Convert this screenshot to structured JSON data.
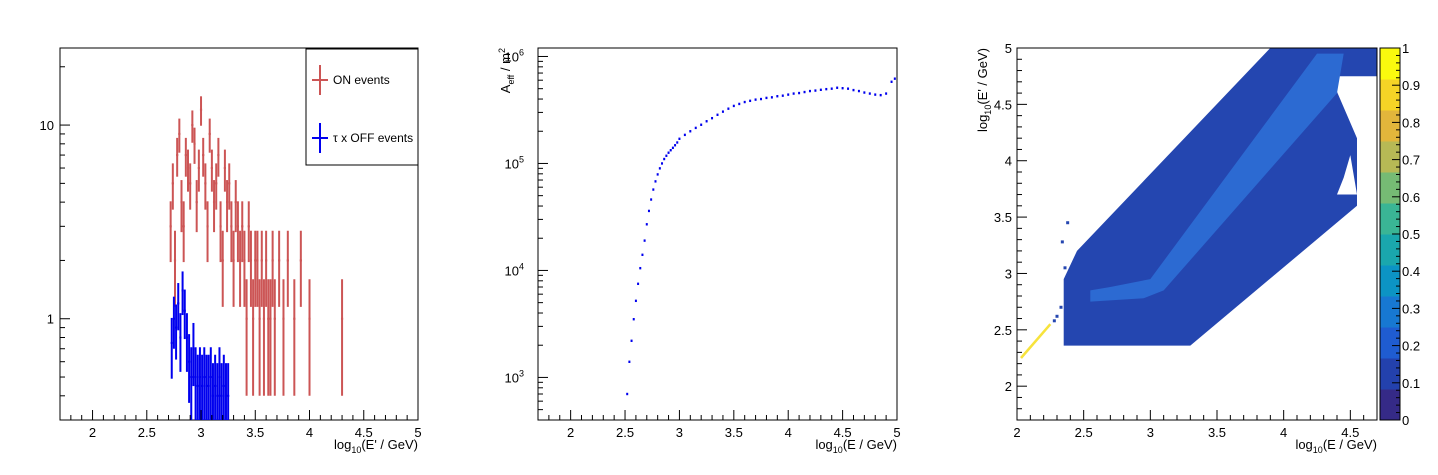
{
  "chart_data": [
    {
      "type": "step",
      "xlabel": "log10(E' / GeV)",
      "xlabel_parts": {
        "base": "log",
        "sub": "10",
        "rest": "(E' / GeV)"
      },
      "xlim": [
        1.7,
        5.0
      ],
      "ylim": [
        0.3,
        25
      ],
      "yscale": "log",
      "x_ticks": [
        2,
        2.5,
        3,
        3.5,
        4,
        4.5,
        5
      ],
      "x_tick_labels": [
        "2",
        "2.5",
        "3",
        "3.5",
        "4",
        "4.5",
        "5"
      ],
      "y_ticks": [
        1,
        10
      ],
      "y_tick_labels": [
        "1",
        "10"
      ],
      "legend": {
        "placement": "top-right"
      },
      "series": [
        {
          "name": "ON events",
          "color": "#cc5555",
          "x": [
            2.72,
            2.74,
            2.76,
            2.78,
            2.8,
            2.82,
            2.84,
            2.86,
            2.88,
            2.9,
            2.92,
            2.94,
            2.96,
            2.98,
            3.0,
            3.02,
            3.04,
            3.06,
            3.08,
            3.1,
            3.12,
            3.14,
            3.16,
            3.18,
            3.2,
            3.22,
            3.24,
            3.26,
            3.28,
            3.3,
            3.32,
            3.34,
            3.36,
            3.38,
            3.4,
            3.42,
            3.44,
            3.46,
            3.48,
            3.5,
            3.52,
            3.54,
            3.56,
            3.58,
            3.6,
            3.62,
            3.64,
            3.66,
            3.68,
            3.72,
            3.76,
            3.8,
            3.86,
            3.92,
            4.0,
            4.3
          ],
          "y": [
            3,
            5,
            2,
            7,
            9,
            4,
            3,
            7,
            6,
            5,
            10,
            8,
            4,
            6,
            12,
            7,
            5,
            3,
            9,
            6,
            4,
            5,
            7,
            3,
            2,
            6,
            4,
            5,
            3,
            2,
            4,
            3,
            2,
            3,
            2,
            1,
            3,
            2,
            1,
            2,
            2,
            1,
            2,
            1,
            2,
            1,
            1,
            2,
            1,
            2,
            1,
            2,
            1,
            2,
            1,
            1
          ]
        },
        {
          "name": "τ x OFF events",
          "color": "#0000ee",
          "x": [
            2.73,
            2.75,
            2.77,
            2.79,
            2.81,
            2.83,
            2.85,
            2.87,
            2.89,
            2.91,
            2.93,
            2.95,
            2.97,
            2.99,
            3.01,
            3.03,
            3.05,
            3.07,
            3.09,
            3.11,
            3.13,
            3.15,
            3.17,
            3.19,
            3.21,
            3.23,
            3.25
          ],
          "y": [
            0.75,
            1.0,
            0.9,
            1.2,
            0.8,
            1.4,
            1.1,
            0.8,
            0.6,
            0.5,
            0.7,
            0.5,
            0.45,
            0.5,
            0.45,
            0.5,
            0.45,
            0.45,
            0.5,
            0.4,
            0.45,
            0.4,
            0.5,
            0.4,
            0.45,
            0.4,
            0.4
          ]
        }
      ]
    },
    {
      "type": "scatter",
      "xlabel": "log10(E / GeV)",
      "xlabel_parts": {
        "base": "log",
        "sub": "10",
        "rest": "(E / GeV)"
      },
      "ylabel": "Aeff / m2",
      "ylabel_parts": {
        "base": "A",
        "sub": "eff",
        "rest": " / m",
        "sup": "2"
      },
      "xlim": [
        1.7,
        5.0
      ],
      "ylim": [
        400,
        1200000
      ],
      "yscale": "log",
      "color": "#0000ee",
      "x_ticks": [
        2,
        2.5,
        3,
        3.5,
        4,
        4.5,
        5
      ],
      "x_tick_labels": [
        "2",
        "2.5",
        "3",
        "3.5",
        "4",
        "4.5",
        "5"
      ],
      "y_ticks": [
        1000,
        10000,
        100000,
        1000000
      ],
      "y_tick_labels": [
        {
          "base": "10",
          "exp": "3"
        },
        {
          "base": "10",
          "exp": "4"
        },
        {
          "base": "10",
          "exp": "5"
        },
        {
          "base": "10",
          "exp": "6"
        }
      ],
      "x": [
        2.52,
        2.54,
        2.56,
        2.58,
        2.6,
        2.62,
        2.64,
        2.66,
        2.68,
        2.7,
        2.72,
        2.74,
        2.76,
        2.78,
        2.8,
        2.82,
        2.84,
        2.86,
        2.88,
        2.9,
        2.92,
        2.94,
        2.96,
        2.98,
        3.0,
        3.05,
        3.1,
        3.15,
        3.2,
        3.25,
        3.3,
        3.35,
        3.4,
        3.45,
        3.5,
        3.55,
        3.6,
        3.65,
        3.7,
        3.75,
        3.8,
        3.85,
        3.9,
        3.95,
        4.0,
        4.05,
        4.1,
        4.15,
        4.2,
        4.25,
        4.3,
        4.35,
        4.4,
        4.45,
        4.5,
        4.55,
        4.6,
        4.65,
        4.7,
        4.75,
        4.8,
        4.85,
        4.9,
        4.95,
        4.98
      ],
      "y": [
        700,
        1400,
        2200,
        3500,
        5200,
        7500,
        10500,
        14000,
        19000,
        27000,
        36000,
        46000,
        57000,
        68000,
        79000,
        90000,
        100000,
        110000,
        118000,
        126000,
        133000,
        140000,
        148000,
        157000,
        170000,
        185000,
        200000,
        215000,
        230000,
        248000,
        265000,
        285000,
        305000,
        325000,
        345000,
        360000,
        375000,
        385000,
        395000,
        400000,
        410000,
        415000,
        425000,
        430000,
        440000,
        450000,
        455000,
        465000,
        475000,
        480000,
        488000,
        495000,
        500000,
        510000,
        505000,
        500000,
        485000,
        475000,
        460000,
        450000,
        440000,
        435000,
        450000,
        580000,
        620000
      ]
    },
    {
      "type": "heatmap",
      "xlabel": "log10(E / GeV)",
      "xlabel_parts": {
        "base": "log",
        "sub": "10",
        "rest": "(E / GeV)"
      },
      "ylabel": "log10(E' / GeV)",
      "ylabel_parts": {
        "base": "log",
        "sub": "10",
        "rest": "(E' / GeV)"
      },
      "xlim": [
        2.0,
        4.7
      ],
      "ylim": [
        1.7,
        5.0
      ],
      "x_ticks": [
        2,
        2.5,
        3,
        3.5,
        4,
        4.5
      ],
      "x_tick_labels": [
        "2",
        "2.5",
        "3",
        "3.5",
        "4",
        "4.5"
      ],
      "y_ticks": [
        2,
        2.5,
        3,
        3.5,
        4,
        4.5,
        5
      ],
      "y_tick_labels": [
        "2",
        "2.5",
        "3",
        "3.5",
        "4",
        "4.5",
        "5"
      ],
      "zlim": [
        0,
        1
      ],
      "colorbar_ticks": [
        0,
        0.1,
        0.2,
        0.3,
        0.4,
        0.5,
        0.6,
        0.7,
        0.8,
        0.9,
        1
      ],
      "colorbar_tick_labels": [
        "0",
        "0.1",
        "0.2",
        "0.3",
        "0.4",
        "0.5",
        "0.6",
        "0.7",
        "0.8",
        "0.9",
        "1"
      ],
      "palette": [
        "#352a87",
        "#2341ad",
        "#1f5cd1",
        "#1778d2",
        "#0c94c4",
        "#1aa7ad",
        "#3ab595",
        "#76bb74",
        "#b7b955",
        "#e2b63b",
        "#f5d426",
        "#fafa0e"
      ],
      "main_color": "#2446b0",
      "diagonal_color": "#2c6ad2",
      "lowe_color": "#f7e33c"
    }
  ]
}
